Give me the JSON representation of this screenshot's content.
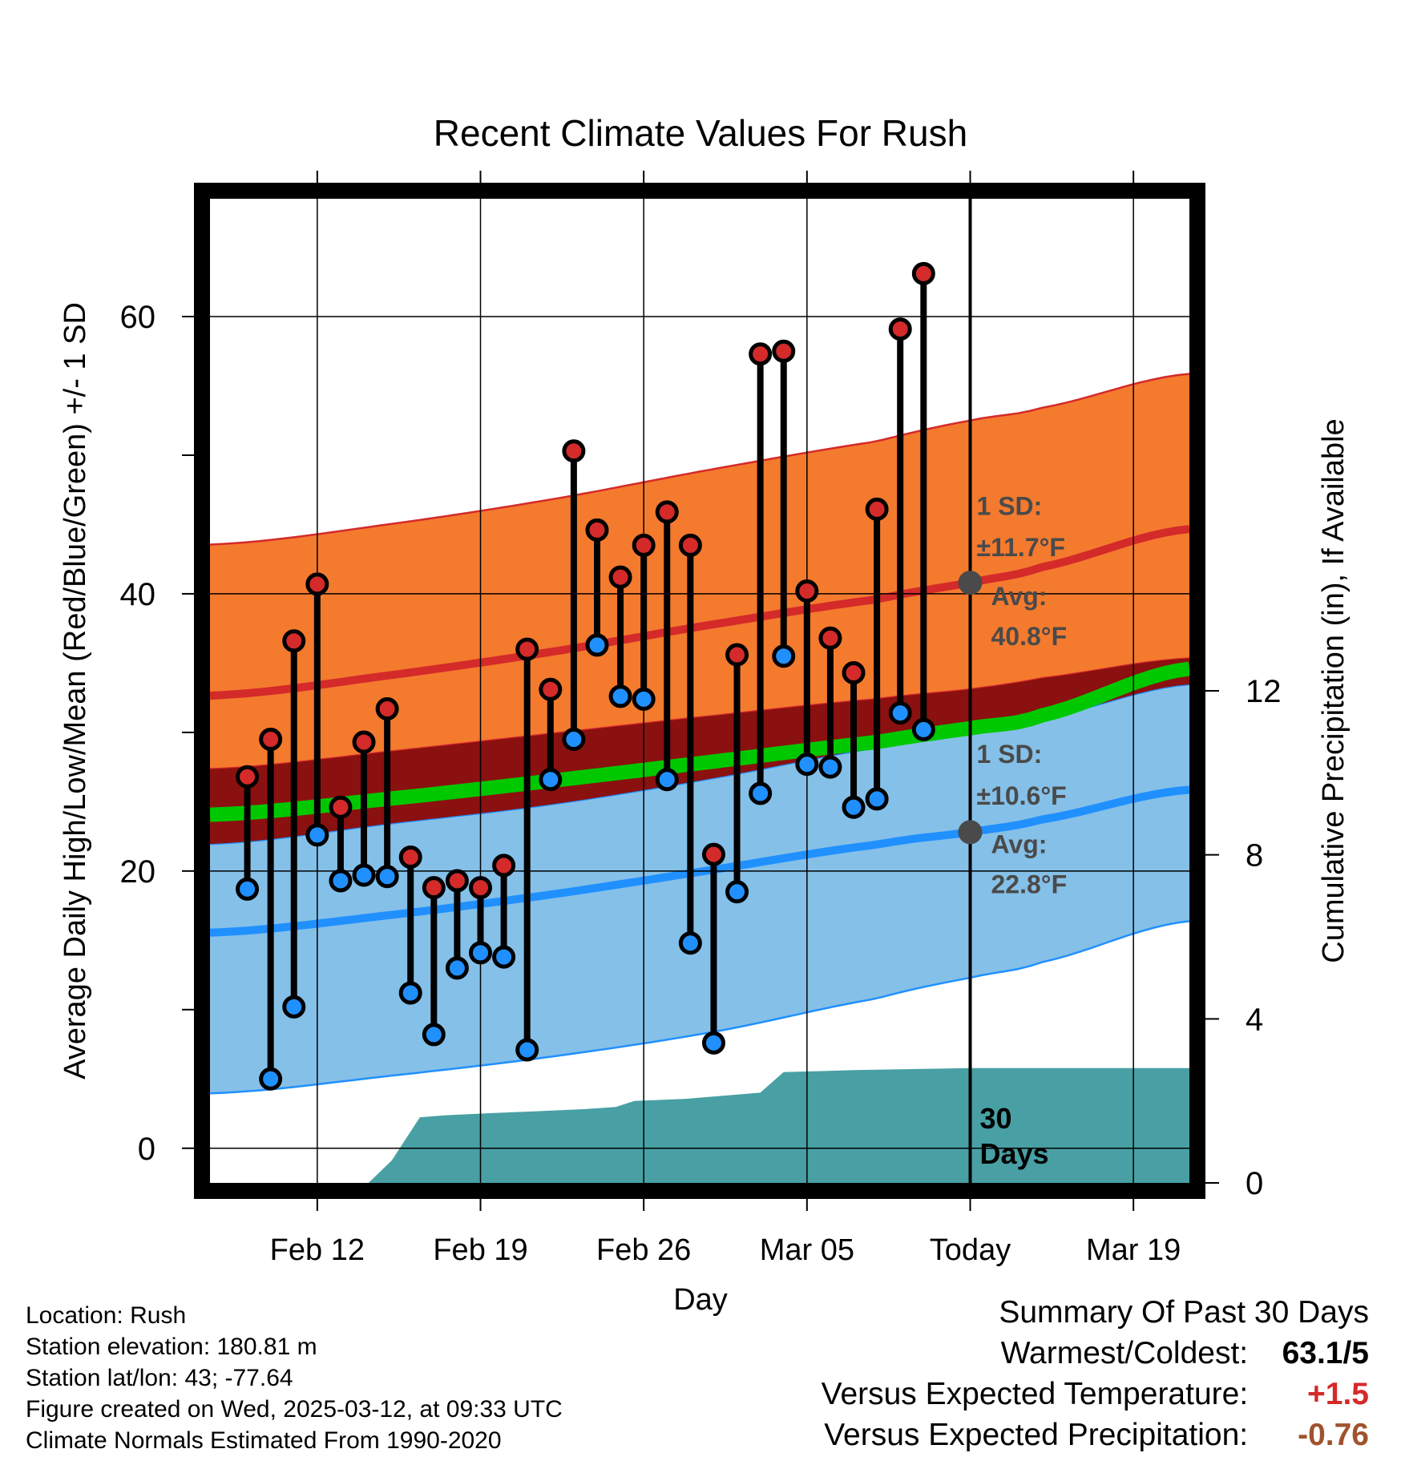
{
  "chart_data": {
    "type": "line",
    "title": "Recent Climate Values For Rush",
    "xlabel": "Day",
    "ylabel": "Average Daily High/Low/Mean (Red/Blue/Green) +/- 1 SD",
    "y2label": "Cumulative Precipitation (in), If Available",
    "xticks": [
      "Feb 12",
      "Feb 19",
      "Feb 26",
      "Mar 05",
      "Today",
      "Mar 19"
    ],
    "yticks": [
      0,
      20,
      40,
      60
    ],
    "y2ticks": [
      0,
      4,
      8,
      12
    ],
    "ylim": [
      -2.5,
      68.5
    ],
    "y2lim": [
      0,
      24
    ],
    "xlim_days": [
      -32.6,
      9.4
    ],
    "today_marker_label": "30 Days",
    "grid": true,
    "normals": {
      "days": [
        -32,
        -25,
        -18,
        -11,
        -4,
        0,
        3,
        9
      ],
      "high_avg": [
        32.7,
        34.1,
        35.8,
        37.8,
        39.6,
        40.8,
        41.9,
        44.6
      ],
      "high_upper": [
        43.6,
        45.0,
        46.8,
        49.0,
        51.0,
        52.5,
        53.4,
        55.8
      ],
      "high_lower": [
        27.4,
        28.6,
        29.9,
        31.2,
        32.4,
        33.1,
        33.9,
        35.3
      ],
      "mean_avg": [
        24.1,
        25.2,
        26.5,
        27.9,
        29.3,
        30.3,
        31.2,
        34.5
      ],
      "low_avg": [
        15.6,
        16.8,
        18.3,
        20.1,
        21.9,
        22.8,
        23.7,
        25.8
      ],
      "low_upper": [
        22.0,
        23.4,
        24.8,
        26.7,
        28.9,
        30.2,
        31.0,
        33.4
      ],
      "low_lower": [
        4.0,
        5.2,
        6.6,
        8.4,
        10.8,
        12.3,
        13.4,
        16.3
      ]
    },
    "daily_days": [
      -31,
      -30,
      -29,
      -28,
      -27,
      -26,
      -25,
      -24,
      -23,
      -22,
      -21,
      -20,
      -19,
      -18,
      -17,
      -16,
      -15,
      -14,
      -13,
      -12,
      -11,
      -10,
      -9,
      -8,
      -7,
      -6,
      -5,
      -4,
      -3,
      -2,
      -1
    ],
    "daily_high": [
      26.8,
      29.5,
      36.6,
      40.7,
      24.6,
      29.3,
      31.7,
      21.0,
      18.8,
      19.3,
      18.8,
      20.4,
      36.0,
      33.1,
      50.3,
      44.6,
      41.2,
      43.5,
      45.9,
      43.5,
      21.2,
      35.6,
      57.3,
      57.5,
      40.2,
      36.8,
      34.3,
      46.1,
      59.1,
      63.1,
      0
    ],
    "daily_low": [
      18.7,
      5.0,
      10.2,
      22.6,
      19.3,
      19.7,
      19.6,
      11.2,
      8.2,
      13.0,
      14.1,
      13.8,
      7.1,
      26.6,
      29.5,
      36.3,
      32.6,
      32.4,
      26.6,
      14.8,
      7.6,
      18.5,
      25.6,
      35.5,
      27.7,
      27.5,
      24.6,
      25.2,
      31.4,
      30.2,
      0
    ],
    "precip_days": [
      -32.6,
      -25.8,
      -24.8,
      -23.6,
      -22.5,
      -20.6,
      -18.5,
      -16.5,
      -15.2,
      -14.4,
      -12.2,
      -9.0,
      -8.0,
      -5.0,
      0,
      9.4
    ],
    "precip_cum": [
      0,
      0,
      0.55,
      1.6,
      1.65,
      1.7,
      1.75,
      1.8,
      1.85,
      2.0,
      2.05,
      2.2,
      2.7,
      2.75,
      2.8,
      2.8
    ],
    "annotations": {
      "high_sd": "1 SD:",
      "high_sd_value": "±11.7°F",
      "high_avg_label": "Avg:",
      "high_avg_value": "40.8°F",
      "low_sd": "1 SD:",
      "low_sd_value": "±10.6°F",
      "low_avg_label": "Avg:",
      "low_avg_value": "22.8°F"
    },
    "colors": {
      "high_band": "#f47a2e",
      "high_line": "#d42a2a",
      "mean_band": "#8b1010",
      "mean_line": "#00c800",
      "low_band": "#85c0e8",
      "low_line": "#2090ff",
      "precip": "#48a0a4",
      "marker_high": "#d42a2a",
      "marker_low": "#2090ff",
      "annotation": "#4a4a4a"
    }
  },
  "info": {
    "location": "Location: Rush",
    "elevation": "Station elevation: 180.81 m",
    "latlon": "Station lat/lon: 43; -77.64",
    "created": "Figure created on Wed, 2025-03-12, at 09:33 UTC",
    "normals": "Climate Normals Estimated From 1990-2020"
  },
  "summary": {
    "title": "Summary Of Past 30 Days",
    "warmest_label": "Warmest/Coldest:",
    "warmest_value": "63.1/5",
    "temp_label": "Versus Expected Temperature:",
    "temp_value": "+1.5",
    "temp_color": "#d42a2a",
    "precip_label": "Versus Expected Precipitation:",
    "precip_value": "-0.76",
    "precip_color": "#a0522d"
  }
}
